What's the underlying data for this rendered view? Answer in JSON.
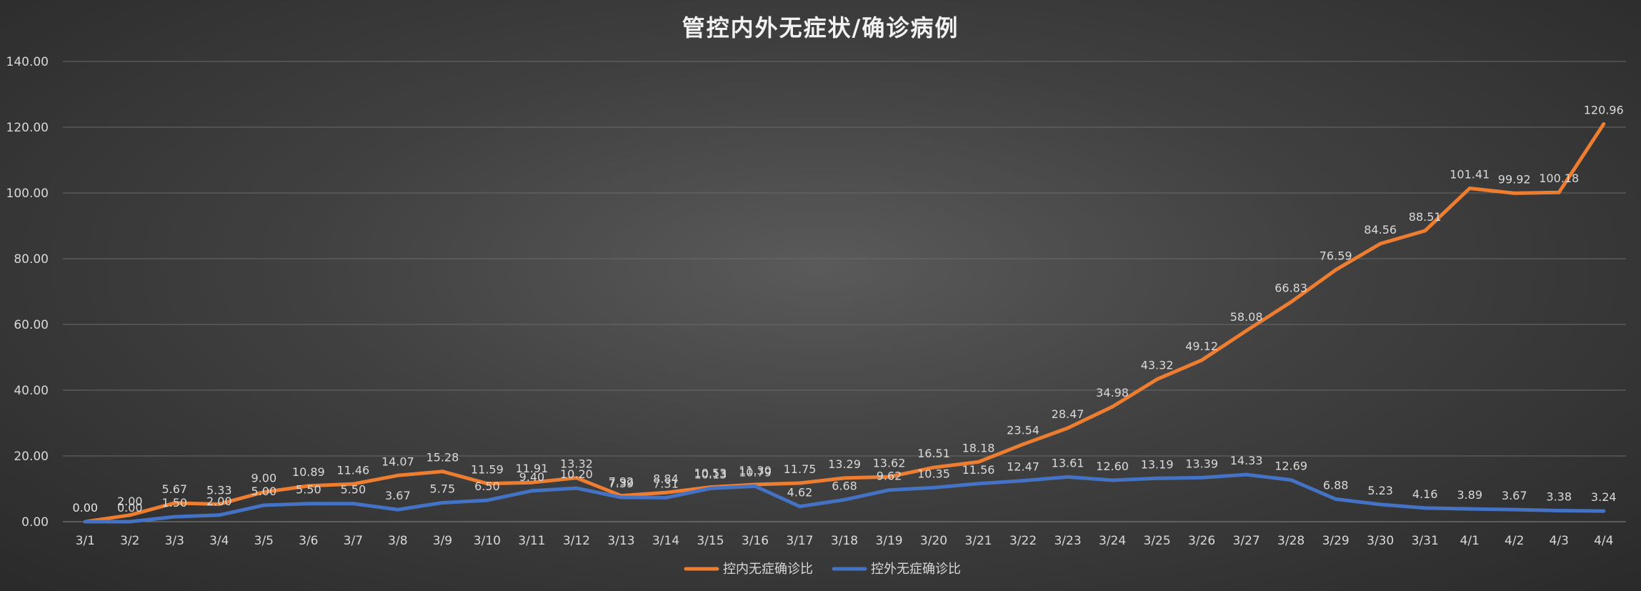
{
  "chart_data": {
    "type": "line",
    "title": "管控内外无症状/确诊病例",
    "xlabel": "",
    "ylabel": "",
    "ylim": [
      0,
      140
    ],
    "yticks": [
      "0.00",
      "20.00",
      "40.00",
      "60.00",
      "80.00",
      "100.00",
      "120.00",
      "140.00"
    ],
    "grid": true,
    "legend_position": "bottom",
    "categories": [
      "3/1",
      "3/2",
      "3/3",
      "3/4",
      "3/5",
      "3/6",
      "3/7",
      "3/8",
      "3/9",
      "3/10",
      "3/11",
      "3/12",
      "3/13",
      "3/14",
      "3/15",
      "3/16",
      "3/17",
      "3/18",
      "3/19",
      "3/20",
      "3/21",
      "3/22",
      "3/23",
      "3/24",
      "3/25",
      "3/26",
      "3/27",
      "3/28",
      "3/29",
      "3/30",
      "3/31",
      "4/1",
      "4/2",
      "4/3",
      "4/4"
    ],
    "series": [
      {
        "name": "控内无症确诊比",
        "color": "#ED7D31",
        "values": [
          0.0,
          2.0,
          5.67,
          5.33,
          9.0,
          10.89,
          11.46,
          14.07,
          15.28,
          11.59,
          11.91,
          13.32,
          7.92,
          8.84,
          10.53,
          11.3,
          11.75,
          13.29,
          13.62,
          16.51,
          18.18,
          23.54,
          28.47,
          34.98,
          43.32,
          49.12,
          58.08,
          66.83,
          76.59,
          84.56,
          88.51,
          101.41,
          99.92,
          100.18,
          120.96
        ],
        "labels": [
          "0.00",
          "2.00",
          "5.67",
          "5.33",
          "9.00",
          "10.89",
          "11.46",
          "14.07",
          "15.28",
          "11.59",
          "11.91",
          "13.32",
          "7.92",
          "8.84",
          "10.53",
          "11.30",
          "11.75",
          "13.29",
          "13.62",
          "16.51",
          "18.18",
          "23.54",
          "28.47",
          "34.98",
          "43.32",
          "49.12",
          "58.08",
          "66.83",
          "76.59",
          "84.56",
          "88.51",
          "101.41",
          "99.92",
          "100.18",
          "120.96"
        ]
      },
      {
        "name": "控外无症确诊比",
        "color": "#4472C4",
        "values": [
          0.0,
          0.0,
          1.5,
          2.0,
          5.0,
          5.5,
          5.5,
          3.67,
          5.75,
          6.5,
          9.4,
          10.2,
          7.39,
          7.31,
          10.13,
          10.79,
          4.62,
          6.68,
          9.62,
          10.35,
          11.56,
          12.47,
          13.61,
          12.6,
          13.19,
          13.39,
          14.33,
          12.69,
          6.88,
          5.23,
          4.16,
          3.89,
          3.67,
          3.38,
          3.24
        ],
        "labels": [
          "0.00",
          "0.00",
          "1.50",
          "2.00",
          "5.00",
          "5.50",
          "5.50",
          "3.67",
          "5.75",
          "6.50",
          "9.40",
          "10.20",
          "7.39",
          "7.31",
          "10.13",
          "10.79",
          "4.62",
          "6.68",
          "9.62",
          "10.35",
          "11.56",
          "12.47",
          "13.61",
          "12.60",
          "13.19",
          "13.39",
          "14.33",
          "12.69",
          "6.88",
          "5.23",
          "4.16",
          "3.89",
          "3.67",
          "3.38",
          "3.24"
        ]
      }
    ]
  }
}
